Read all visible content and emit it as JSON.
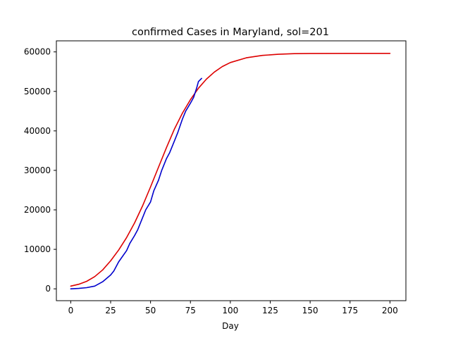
{
  "chart_data": {
    "type": "line",
    "title": "confirmed Cases in Maryland, sol=201",
    "xlabel": "Day",
    "ylabel": "",
    "xlim": [
      -9,
      210
    ],
    "ylim": [
      -3000,
      62800
    ],
    "xticks": [
      0,
      25,
      50,
      75,
      100,
      125,
      150,
      175,
      200
    ],
    "yticks": [
      0,
      10000,
      20000,
      30000,
      40000,
      50000,
      60000
    ],
    "grid": false,
    "legend": "none",
    "series": [
      {
        "color": "#0000cc",
        "x": [
          0,
          5,
          10,
          15,
          20,
          25,
          27,
          30,
          35,
          37,
          40,
          42,
          45,
          47,
          50,
          52,
          55,
          57,
          60,
          62,
          65,
          67,
          70,
          72,
          75,
          77,
          79,
          80,
          82
        ],
        "y": [
          0,
          100,
          300,
          700,
          1800,
          3500,
          4500,
          6800,
          9700,
          11500,
          13500,
          15000,
          18000,
          20000,
          22000,
          24800,
          27500,
          30000,
          33000,
          34500,
          37500,
          39500,
          43000,
          45000,
          47000,
          48500,
          51000,
          52500,
          53300
        ]
      },
      {
        "color": "#dd0000",
        "x": [
          0,
          5,
          10,
          15,
          20,
          25,
          30,
          35,
          40,
          45,
          50,
          55,
          60,
          65,
          70,
          75,
          80,
          85,
          90,
          95,
          100,
          110,
          120,
          130,
          140,
          150,
          175,
          200
        ],
        "y": [
          700,
          1150,
          1900,
          3100,
          4800,
          7100,
          9800,
          13000,
          16700,
          21000,
          25800,
          30800,
          35800,
          40500,
          44500,
          47900,
          50800,
          53100,
          54900,
          56300,
          57300,
          58500,
          59100,
          59400,
          59550,
          59600,
          59620,
          59630
        ]
      }
    ]
  }
}
